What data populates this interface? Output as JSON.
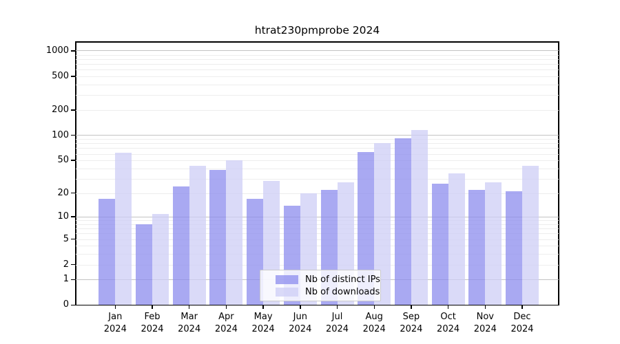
{
  "chart_data": {
    "type": "bar",
    "title": "htrat230pmprobe 2024",
    "categories": [
      "Jan",
      "Feb",
      "Mar",
      "Apr",
      "May",
      "Jun",
      "Jul",
      "Aug",
      "Sep",
      "Oct",
      "Nov",
      "Dec"
    ],
    "category_year": "2024",
    "series": [
      {
        "name": "Nb of distinct IPs",
        "color": "#8c8cee",
        "values": [
          17,
          8,
          24,
          38,
          17,
          14,
          22,
          63,
          92,
          26,
          22,
          21
        ]
      },
      {
        "name": "Nb of downloads",
        "color": "#cdcdf6",
        "values": [
          62,
          11,
          43,
          50,
          28,
          20,
          27,
          80,
          115,
          35,
          27,
          43
        ]
      }
    ],
    "xlabel": "",
    "ylabel": "",
    "ylim": [
      0,
      1000
    ],
    "y_scale": "log1p",
    "y_ticks": [
      0,
      1,
      2,
      5,
      10,
      20,
      50,
      100,
      200,
      500,
      1000
    ],
    "y_minor_ticks": [
      2,
      3,
      4,
      5,
      6,
      7,
      8,
      9,
      20,
      30,
      40,
      50,
      60,
      70,
      80,
      90,
      200,
      300,
      400,
      500,
      600,
      700,
      800,
      900
    ],
    "y_major_gridlines": [
      1,
      10,
      100,
      1000
    ],
    "grid": "on",
    "legend_position": "bottom-center",
    "colors": {
      "major_gridline": "#c2c2c2",
      "minor_gridline": "#ededed",
      "axis": "#000000",
      "background": "#ffffff",
      "bar_alpha": 0.75
    }
  }
}
